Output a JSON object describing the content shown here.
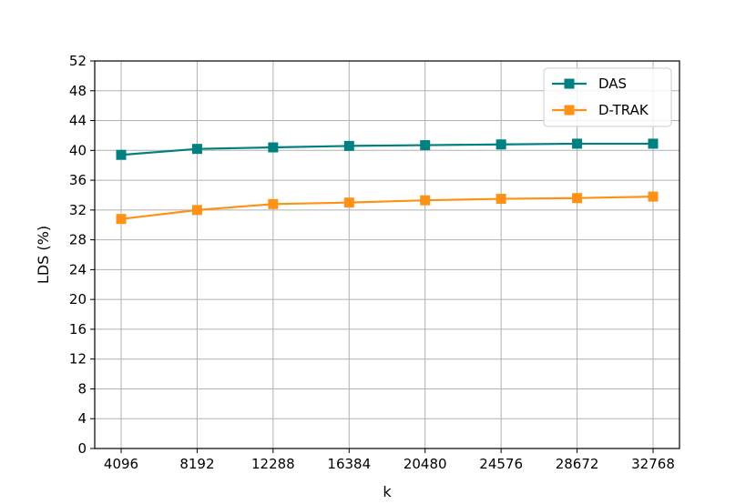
{
  "chart_data": {
    "type": "line",
    "title": "",
    "xlabel": "k",
    "ylabel": "LDS (%)",
    "x": [
      4096,
      8192,
      12288,
      16384,
      20480,
      24576,
      28672,
      32768
    ],
    "x_tick_labels": [
      "4096",
      "8192",
      "12288",
      "16384",
      "20480",
      "24576",
      "28672",
      "32768"
    ],
    "ylim": [
      0,
      52
    ],
    "y_ticks": [
      0,
      4,
      8,
      12,
      16,
      20,
      24,
      28,
      32,
      36,
      40,
      44,
      48,
      52
    ],
    "grid": true,
    "legend_position": "top-right",
    "series": [
      {
        "name": "DAS",
        "color": "#008080",
        "marker": "square",
        "values": [
          39.4,
          40.2,
          40.4,
          40.6,
          40.7,
          40.8,
          40.9,
          40.9
        ]
      },
      {
        "name": "D-TRAK",
        "color": "#ff9116",
        "marker": "square",
        "values": [
          30.8,
          32.0,
          32.8,
          33.0,
          33.3,
          33.5,
          33.6,
          33.8
        ]
      }
    ]
  }
}
